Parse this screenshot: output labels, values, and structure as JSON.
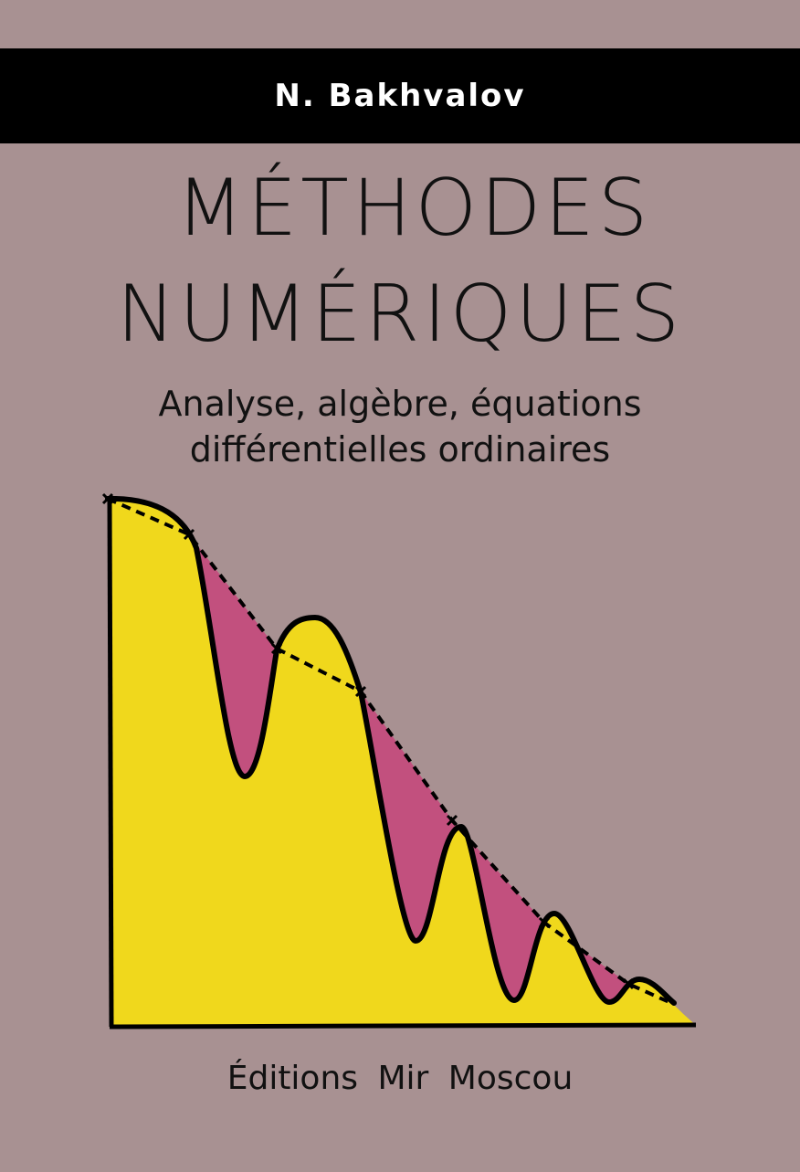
{
  "cover": {
    "author": "N. Bakhvalov",
    "title_line1": "MÉTHODES",
    "title_line2": "NUMÉRIQUES",
    "subtitle_line1": "Analyse, algèbre, équations",
    "subtitle_line2": "différentielles ordinaires",
    "publisher": "Éditions  Mir  Moscou"
  },
  "colors": {
    "background": "#a89192",
    "bar": "#000000",
    "fill_under_curve": "#f0d81c",
    "error_region": "#c2507e"
  },
  "illustration": {
    "icon": "interpolation-curve-graphic"
  }
}
